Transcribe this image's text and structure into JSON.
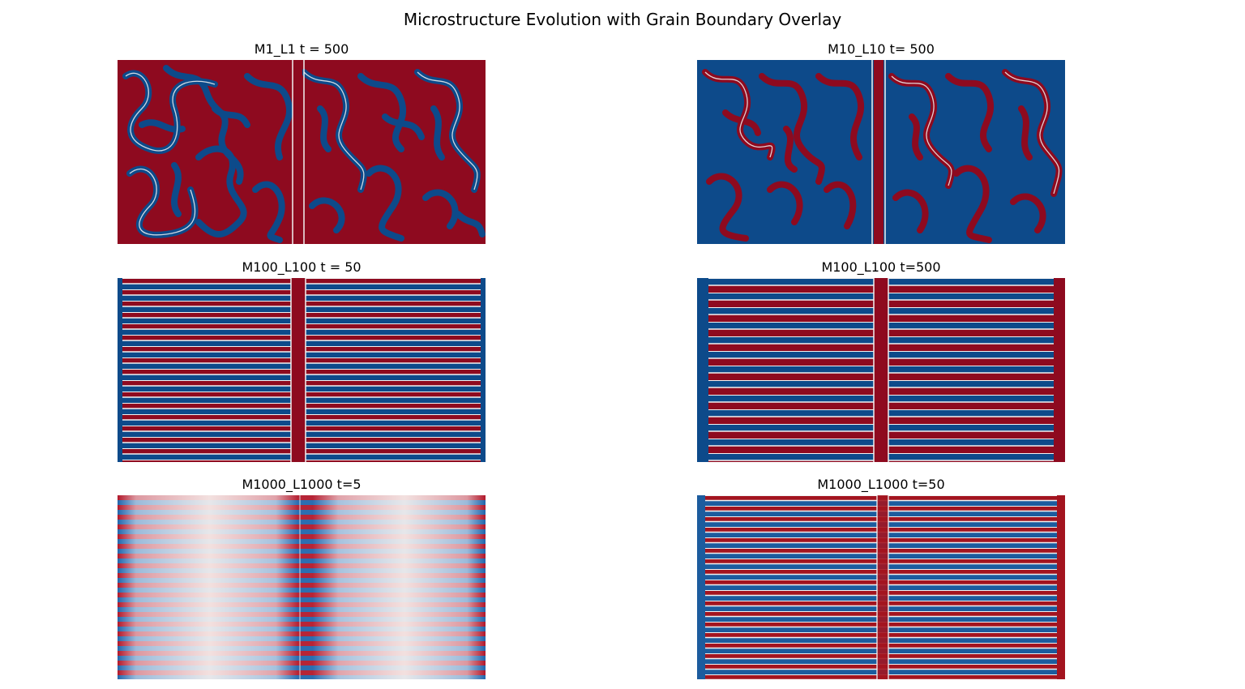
{
  "figure": {
    "title": "Microstructure Evolution with Grain Boundary Overlay",
    "colors": {
      "red": "#8e0a1f",
      "blue": "#0d4a8a",
      "boundary": "#f2f2f2",
      "faded_center": "#f7f1ee"
    },
    "panels": [
      {
        "id": "m1-l1-t500",
        "title": "M1_L1 t = 500",
        "pattern": "labyrinth",
        "grain_boundary": "vertical",
        "contrast": "full"
      },
      {
        "id": "m10-l10-t500",
        "title": "M10_L10 t= 500",
        "pattern": "labyrinth",
        "grain_boundary": "vertical",
        "contrast": "full"
      },
      {
        "id": "m100-l100-t50",
        "title": "M100_L100 t = 50",
        "pattern": "horizontal-lamellae",
        "grain_boundary": "vertical",
        "contrast": "full"
      },
      {
        "id": "m100-l100-t500",
        "title": "M100_L100 t=500",
        "pattern": "coarsened-lamellae",
        "grain_boundary": "vertical",
        "contrast": "full"
      },
      {
        "id": "m1000-l1000-t5",
        "title": "M1000_L1000 t=5",
        "pattern": "horizontal-lamellae",
        "grain_boundary": "vertical",
        "contrast": "faded-center"
      },
      {
        "id": "m1000-l1000-t50",
        "title": "M1000_L1000 t=50",
        "pattern": "horizontal-lamellae",
        "grain_boundary": "vertical",
        "contrast": "full"
      }
    ]
  }
}
